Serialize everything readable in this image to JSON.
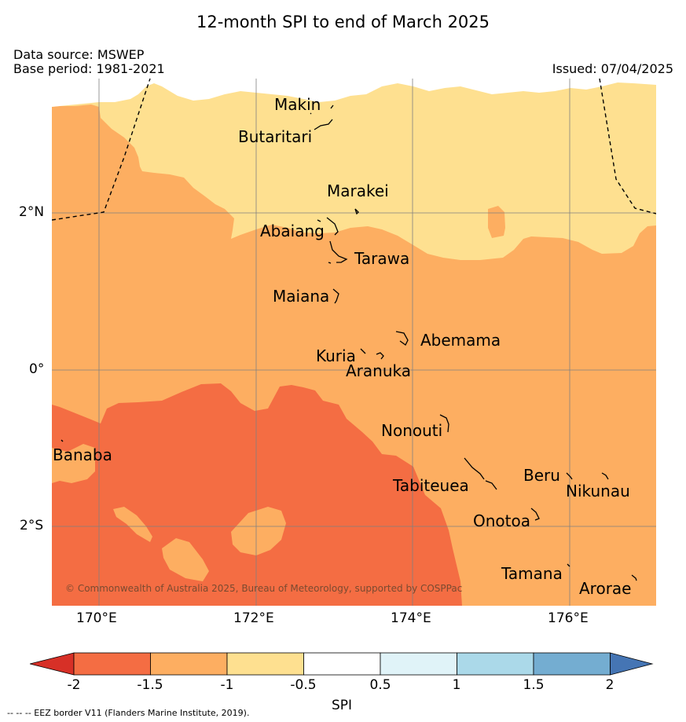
{
  "title": "12-month SPI to end of March 2025",
  "data_source": "Data source: MSWEP",
  "base_period": "Base period: 1981-2021",
  "issued": "Issued: 07/04/2025",
  "copyright": "© Commonwealth of Australia 2025, Bureau of Meteorology, supported by COSPPac",
  "footnote": "--  --  -- EEZ border V11 (Flanders Marine Institute, 2019).",
  "axes": {
    "lat_labels": [
      "2°N",
      "0°",
      "2°S"
    ],
    "lon_labels": [
      "170°E",
      "172°E",
      "174°E",
      "176°E"
    ]
  },
  "places": {
    "makin": "Makin",
    "butaritari": "Butaritari",
    "marakei": "Marakei",
    "abaiang": "Abaiang",
    "tarawa": "Tarawa",
    "maiana": "Maiana",
    "abemama": "Abemama",
    "kuria": "Kuria",
    "aranuka": "Aranuka",
    "nonouti": "Nonouti",
    "banaba": "Banaba",
    "beru": "Beru",
    "nikunau": "Nikunau",
    "tabiteuea": "Tabiteuea",
    "onotoa": "Onotoa",
    "tamana": "Tamana",
    "arorae": "Arorae"
  },
  "colorbar": {
    "label": "SPI",
    "ticks": [
      "-2",
      "-1.5",
      "-1",
      "-0.5",
      "0.5",
      "1",
      "1.5",
      "2"
    ],
    "colors": {
      "below_min": "#d73027",
      "c1": "#f46d43",
      "c2": "#fdae61",
      "c3": "#fee090",
      "c4": "#ffffff",
      "c5": "#e0f3f8",
      "c6": "#abd9e9",
      "c7": "#74add1",
      "above_max": "#4575b4"
    }
  }
}
